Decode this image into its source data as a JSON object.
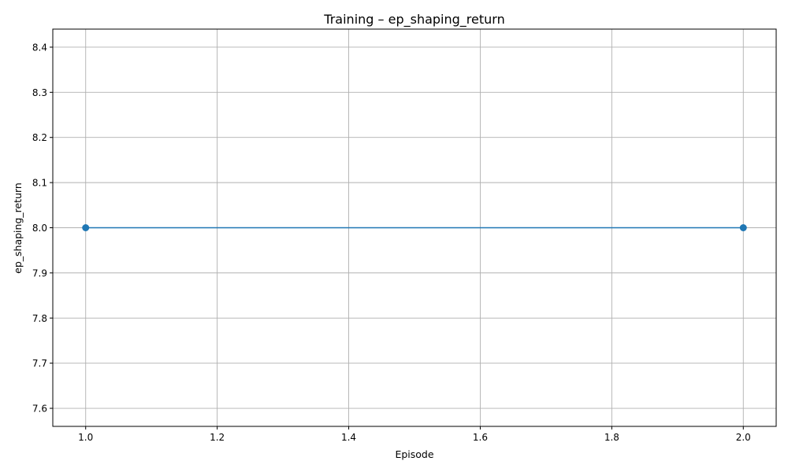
{
  "chart_data": {
    "type": "line",
    "title": "Training – ep_shaping_return",
    "xlabel": "Episode",
    "ylabel": "ep_shaping_return",
    "xlim": [
      0.95,
      2.05
    ],
    "ylim": [
      7.56,
      8.44
    ],
    "x_ticks": [
      1.0,
      1.2,
      1.4,
      1.6,
      1.8,
      2.0
    ],
    "x_tick_labels": [
      "1.0",
      "1.2",
      "1.4",
      "1.6",
      "1.8",
      "2.0"
    ],
    "y_ticks": [
      7.6,
      7.7,
      7.8,
      7.9,
      8.0,
      8.1,
      8.2,
      8.3,
      8.4
    ],
    "y_tick_labels": [
      "7.6",
      "7.7",
      "7.8",
      "7.9",
      "8.0",
      "8.1",
      "8.2",
      "8.3",
      "8.4"
    ],
    "grid": true,
    "series": [
      {
        "x": [
          1,
          2
        ],
        "y": [
          8.0,
          8.0
        ],
        "color": "#1f77b4",
        "marker": "circle"
      }
    ]
  }
}
